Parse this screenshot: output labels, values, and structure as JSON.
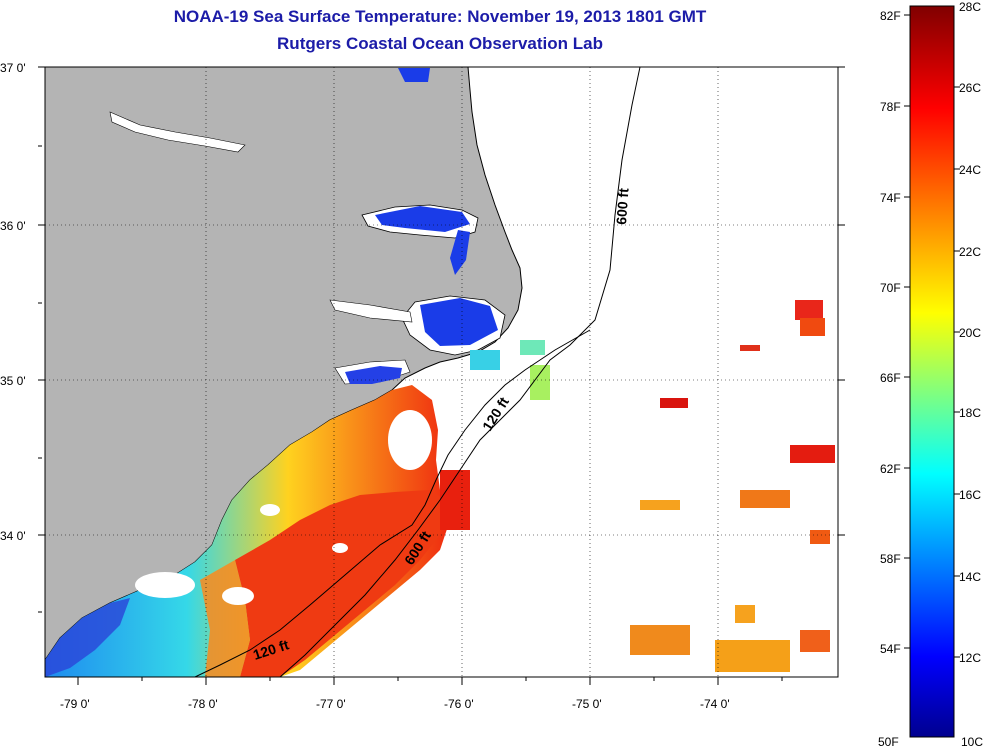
{
  "title": {
    "line1": "NOAA-19 Sea Surface Temperature:  November 19, 2013 1801 GMT",
    "line2": "Rutgers Coastal Ocean Observation Lab"
  },
  "map": {
    "lat_labels": [
      "37 0'",
      "36 0'",
      "35 0'",
      "34 0'"
    ],
    "lon_labels": [
      "-79 0'",
      "-78 0'",
      "-77 0'",
      "-76 0'",
      "-75 0'",
      "-74 0'"
    ],
    "contours": [
      "600 ft",
      "120 ft",
      "600 ft",
      "120 ft"
    ],
    "land_color": "#b4b4b4",
    "no_data_color": "#ffffff"
  },
  "colorbar": {
    "fahrenheit": [
      "82F",
      "78F",
      "74F",
      "70F",
      "66F",
      "62F",
      "58F",
      "54F",
      "50F"
    ],
    "celsius": [
      "28C",
      "26C",
      "24C",
      "22C",
      "20C",
      "18C",
      "16C",
      "14C",
      "12C",
      "10C"
    ],
    "min_c": 10,
    "max_c": 28,
    "colors": [
      "#00008f",
      "#0000ff",
      "#00ffff",
      "#ffff00",
      "#ff0000",
      "#800000"
    ]
  }
}
